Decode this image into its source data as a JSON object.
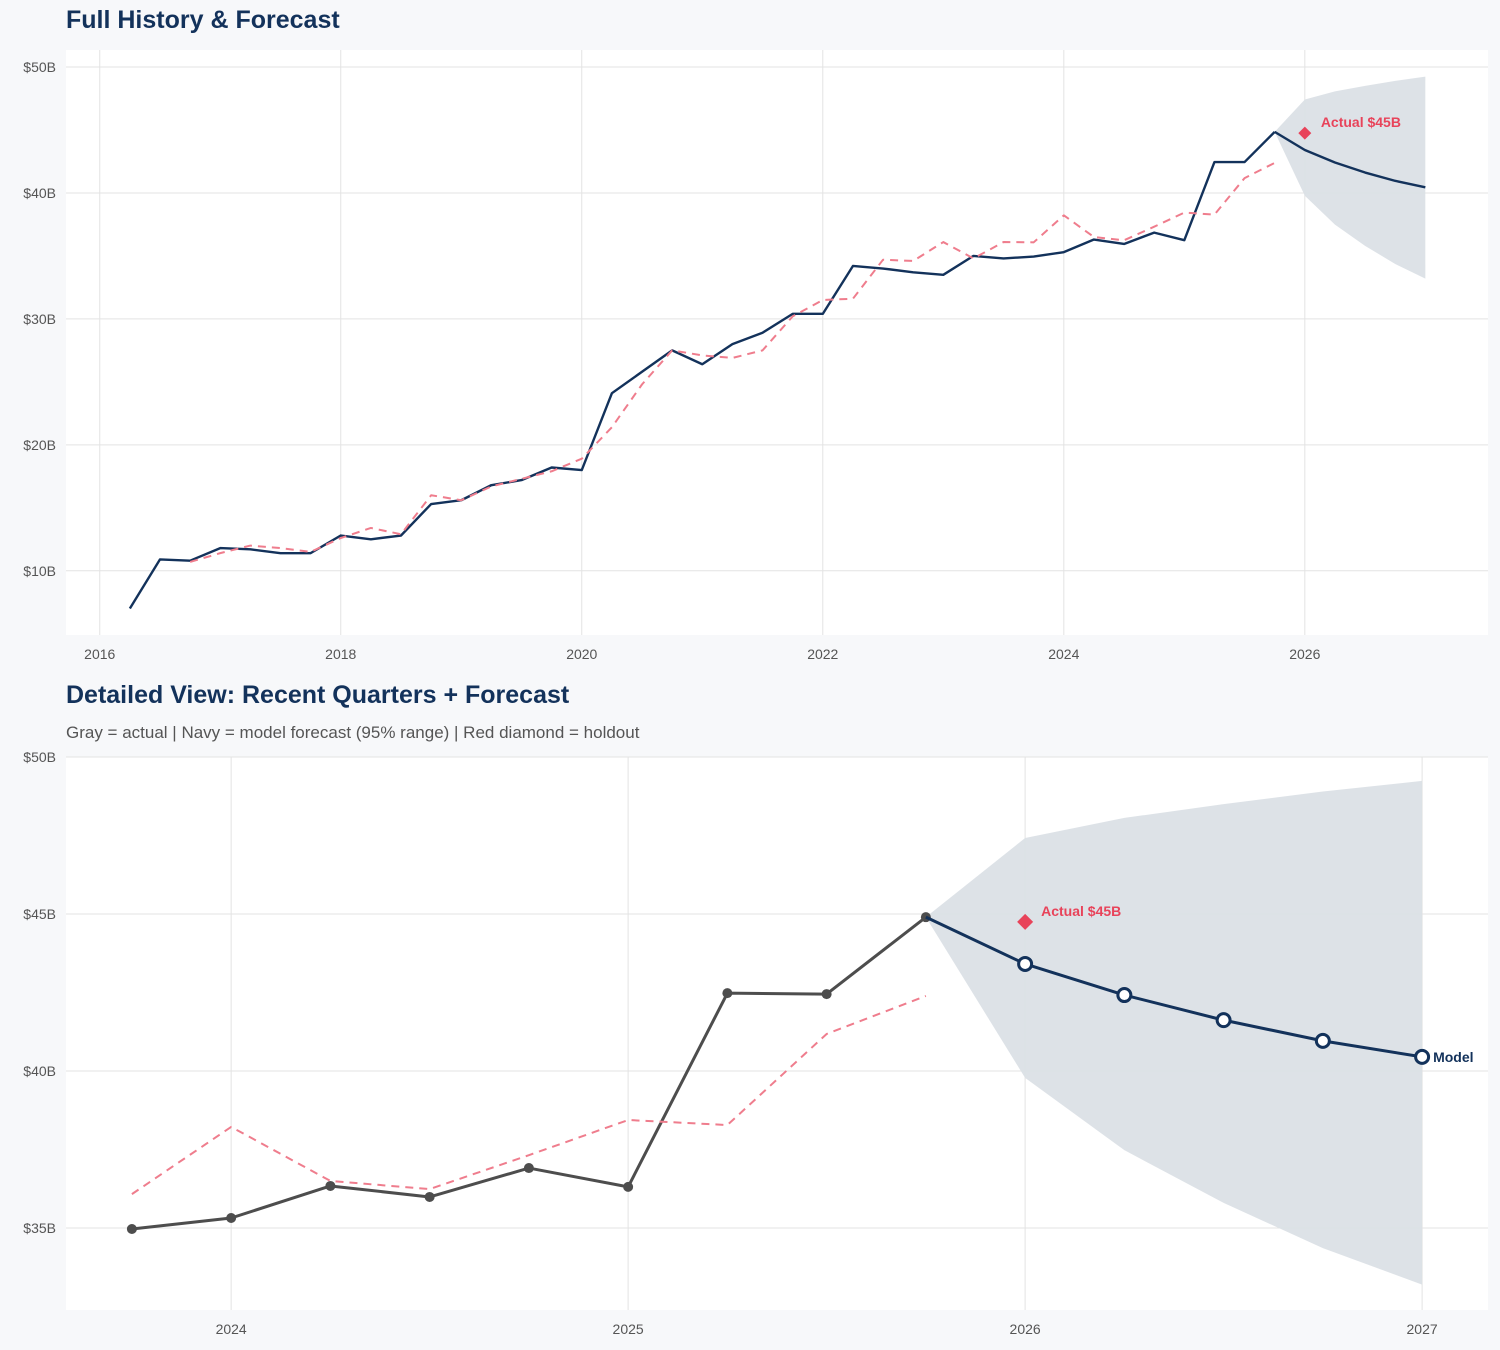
{
  "colors": {
    "navy": "#13325b",
    "holdout": "#e8435a",
    "dashed": "#ef7d8d",
    "actual_gray": "#4d4d4d",
    "band": "#dbe0e6",
    "grid": "#e3e3e3"
  },
  "chart_data": [
    {
      "type": "line",
      "title": "Full History & Forecast",
      "xlim": [
        2015.72,
        2027.52
      ],
      "ylim": [
        4.9,
        51.35
      ],
      "x_ticks": [
        2016,
        2018,
        2020,
        2022,
        2024,
        2026
      ],
      "x_tick_labels": [
        "2016",
        "2018",
        "2020",
        "2022",
        "2024",
        "2026"
      ],
      "y_ticks": [
        10,
        20,
        30,
        40,
        50
      ],
      "y_tick_labels": [
        "$10B",
        "$20B",
        "$30B",
        "$40B",
        "$50B"
      ],
      "grid": true,
      "series": [
        {
          "role": "actual",
          "style": "navy-solid",
          "x": [
            2016.25,
            2016.5,
            2016.75,
            2017,
            2017.25,
            2017.5,
            2017.75,
            2018,
            2018.25,
            2018.5,
            2018.75,
            2019,
            2019.25,
            2019.5,
            2019.75,
            2020,
            2020.25,
            2020.5,
            2020.75,
            2021,
            2021.25,
            2021.5,
            2021.75,
            2022,
            2022.25,
            2022.5,
            2022.75,
            2023,
            2023.25,
            2023.5,
            2023.75,
            2024,
            2024.25,
            2024.5,
            2024.75,
            2025,
            2025.25,
            2025.5,
            2025.75
          ],
          "y": [
            7.0,
            10.9,
            10.8,
            11.8,
            11.7,
            11.4,
            11.4,
            12.8,
            12.5,
            12.8,
            15.3,
            15.6,
            16.8,
            17.2,
            18.2,
            18.0,
            24.1,
            25.8,
            27.5,
            26.4,
            28.0,
            28.9,
            30.4,
            30.4,
            34.2,
            34.0,
            33.7,
            33.5,
            35.0,
            34.8,
            34.95,
            35.3,
            36.3,
            35.95,
            36.85,
            36.25,
            42.45,
            42.45,
            44.85
          ]
        },
        {
          "role": "comparison",
          "style": "red-dashed",
          "x": [
            2016.75,
            2017,
            2017.25,
            2017.5,
            2017.75,
            2018,
            2018.25,
            2018.5,
            2018.75,
            2019,
            2019.25,
            2019.5,
            2019.75,
            2020,
            2020.25,
            2020.5,
            2020.75,
            2021,
            2021.25,
            2021.5,
            2021.75,
            2022,
            2022.25,
            2022.5,
            2022.75,
            2023,
            2023.25,
            2023.5,
            2023.75,
            2024,
            2024.25,
            2024.5,
            2024.75,
            2025,
            2025.25,
            2025.5,
            2025.75
          ],
          "y": [
            10.7,
            11.4,
            12.0,
            11.8,
            11.5,
            12.6,
            13.4,
            12.9,
            16.0,
            15.6,
            16.7,
            17.3,
            17.9,
            18.9,
            21.4,
            24.8,
            27.5,
            27.1,
            26.9,
            27.5,
            30.2,
            31.5,
            31.6,
            34.7,
            34.6,
            36.1,
            34.8,
            36.1,
            36.08,
            38.22,
            36.5,
            36.24,
            37.32,
            38.44,
            38.28,
            41.18,
            42.39
          ]
        },
        {
          "role": "forecast",
          "style": "navy-solid",
          "x": [
            2025.75,
            2026,
            2026.25,
            2026.5,
            2026.75,
            2027
          ],
          "y": [
            44.85,
            43.41,
            42.42,
            41.62,
            40.96,
            40.45
          ]
        }
      ],
      "band": {
        "label": "95% range",
        "x": [
          2025.75,
          2026,
          2026.25,
          2026.5,
          2026.75,
          2027
        ],
        "upper": [
          44.85,
          47.42,
          48.06,
          48.5,
          48.9,
          49.24
        ],
        "lower": [
          44.85,
          39.78,
          37.48,
          35.8,
          34.36,
          33.2
        ]
      },
      "holdout": {
        "x": 2026,
        "y": 44.75,
        "label": "Actual $45B"
      }
    },
    {
      "type": "line",
      "title": "Detailed View: Recent Quarters + Forecast",
      "subtitle": "Gray = actual  |  Navy = model forecast (95% range)  |  Red diamond = holdout",
      "xlim": [
        2023.584,
        2027.166
      ],
      "ylim": [
        32.39,
        50
      ],
      "x_ticks": [
        2024,
        2025,
        2026,
        2027
      ],
      "x_tick_labels": [
        "2024",
        "2025",
        "2026",
        "2027"
      ],
      "y_ticks": [
        35,
        40,
        45,
        50
      ],
      "y_tick_labels": [
        "$35B",
        "$40B",
        "$45B",
        "$50B"
      ],
      "grid": true,
      "series": [
        {
          "role": "actual",
          "style": "gray-solid-dots",
          "x": [
            2023.75,
            2024,
            2024.25,
            2024.5,
            2024.75,
            2025,
            2025.25,
            2025.5,
            2025.75
          ],
          "y": [
            34.97,
            35.32,
            36.34,
            35.99,
            36.91,
            36.31,
            42.48,
            42.45,
            44.9
          ]
        },
        {
          "role": "comparison",
          "style": "red-dashed",
          "x": [
            2023.75,
            2024,
            2024.25,
            2024.5,
            2024.75,
            2025,
            2025.25,
            2025.5,
            2025.75
          ],
          "y": [
            36.08,
            38.22,
            36.5,
            36.24,
            37.32,
            38.44,
            38.28,
            41.18,
            42.39
          ]
        },
        {
          "role": "forecast",
          "name": "Model",
          "style": "navy-solid-open-circles",
          "x": [
            2025.75,
            2026,
            2026.25,
            2026.5,
            2026.75,
            2027
          ],
          "y": [
            44.9,
            43.41,
            42.42,
            41.62,
            40.96,
            40.45
          ]
        }
      ],
      "band": {
        "label": "95% range",
        "x": [
          2025.75,
          2026,
          2026.25,
          2026.5,
          2026.75,
          2027
        ],
        "upper": [
          44.9,
          47.42,
          48.06,
          48.5,
          48.9,
          49.24
        ],
        "lower": [
          44.9,
          39.78,
          37.48,
          35.8,
          34.36,
          33.2
        ]
      },
      "holdout": {
        "x": 2026,
        "y": 44.75,
        "label": "Actual $45B"
      }
    }
  ]
}
